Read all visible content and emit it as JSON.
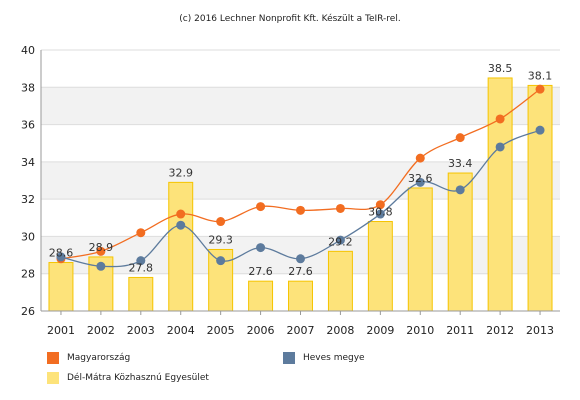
{
  "credit": "(c) 2016 Lechner Nonprofit Kft. Készült a TeIR-rel.",
  "chart_data": {
    "type": "bar",
    "categories": [
      "2001",
      "2002",
      "2003",
      "2004",
      "2005",
      "2006",
      "2007",
      "2008",
      "2009",
      "2010",
      "2011",
      "2012",
      "2013"
    ],
    "ylim": [
      26,
      40
    ],
    "yticks": [
      26,
      28,
      30,
      32,
      34,
      36,
      38,
      40
    ],
    "grid": true,
    "legend_position": "bottom",
    "series": [
      {
        "name": "Dél-Mátra Közhasznú Egyesület",
        "kind": "bar",
        "color": "#fde37a",
        "edge": "#f5c400",
        "values": [
          28.6,
          28.9,
          27.8,
          32.9,
          29.3,
          27.6,
          27.6,
          29.2,
          30.8,
          32.6,
          33.4,
          38.5,
          38.1
        ],
        "labels": [
          "28.6",
          "28.9",
          "27.8",
          "32.9",
          "29.3",
          "27.6",
          "27.6",
          "29.2",
          "30.8",
          "32.6",
          "33.4",
          "38.5",
          "38.1"
        ]
      },
      {
        "name": "Magyarország",
        "kind": "line",
        "color": "#f26d21",
        "values": [
          28.8,
          29.2,
          30.2,
          31.2,
          30.8,
          31.6,
          31.4,
          31.5,
          31.7,
          34.2,
          35.3,
          36.3,
          37.9
        ]
      },
      {
        "name": "Heves megye",
        "kind": "line",
        "color": "#5d7b9d",
        "values": [
          28.9,
          28.4,
          28.7,
          30.6,
          28.7,
          29.4,
          28.8,
          29.8,
          31.2,
          32.9,
          32.5,
          34.8,
          35.7
        ]
      }
    ]
  },
  "legend": [
    {
      "label": "Magyarország",
      "color": "#f26d21"
    },
    {
      "label": "Heves megye",
      "color": "#5d7b9d"
    },
    {
      "label": "Dél-Mátra Közhasznú Egyesület",
      "color": "#fde37a"
    }
  ]
}
